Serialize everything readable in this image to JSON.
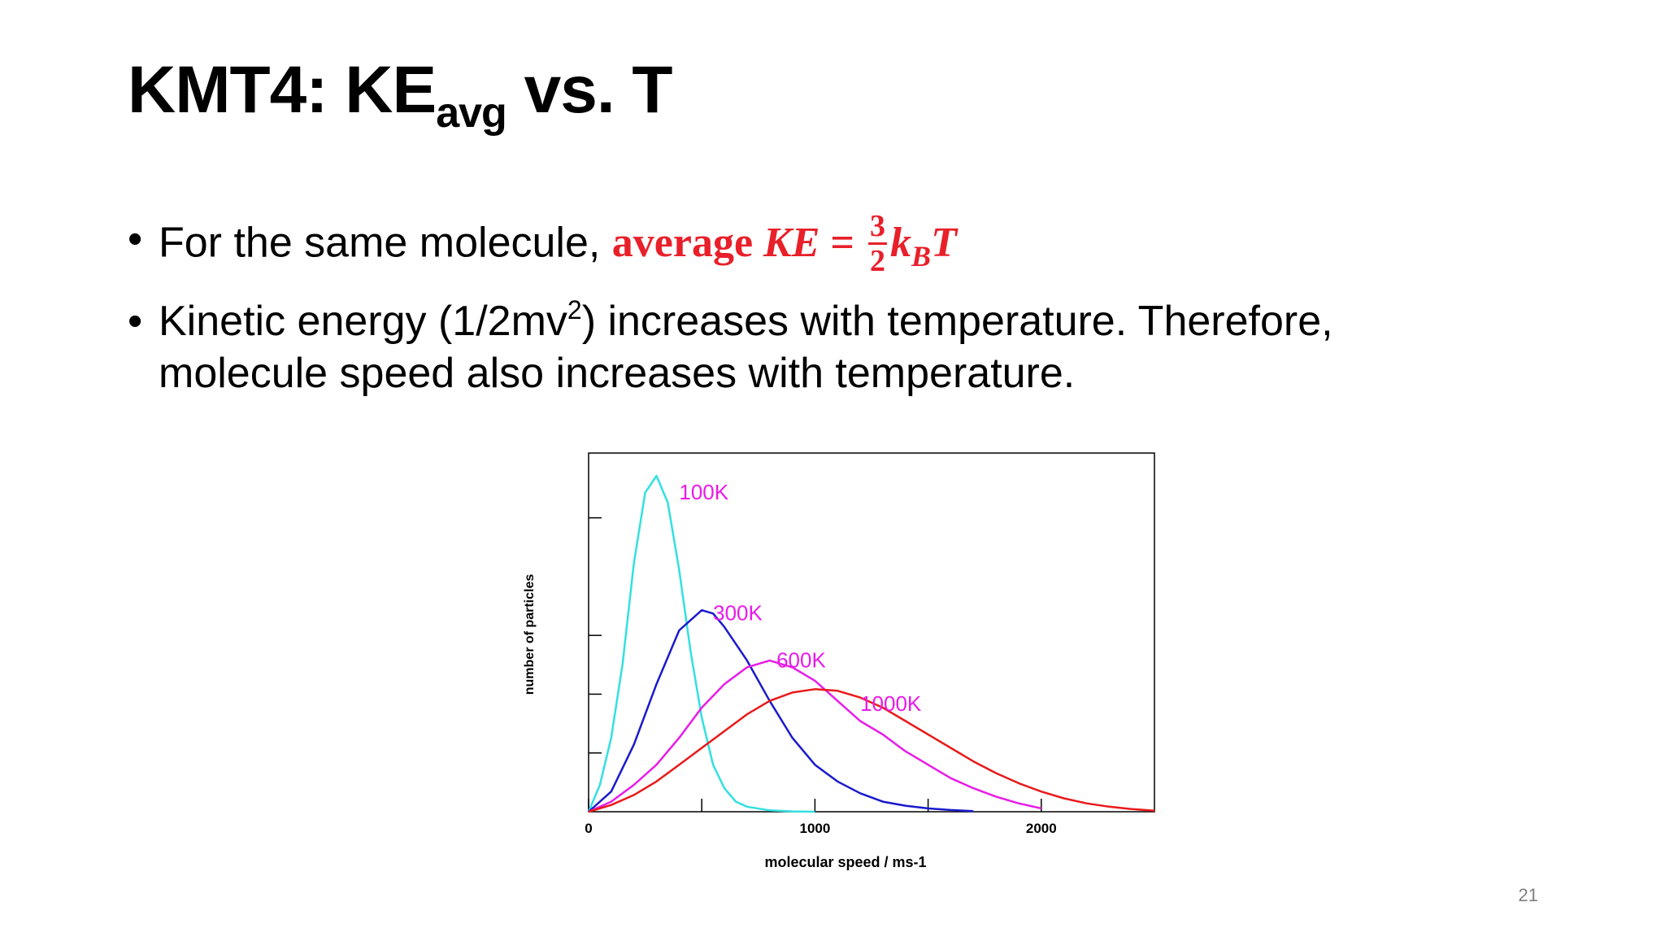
{
  "slide": {
    "title_main": "KMT4: KE",
    "title_sub": "avg",
    "title_tail": " vs. T",
    "page_number": "21"
  },
  "bullets": {
    "b1_text": "For the same molecule, ",
    "b1_red_word": "average ",
    "b1_ke": "KE",
    "b1_eq": " = ",
    "b1_frac_num": "3",
    "b1_frac_den": "2",
    "b1_k": "k",
    "b1_k_sub": "B",
    "b1_T": "T",
    "b2_line1_a": "Kinetic energy (1/2mv",
    "b2_line1_sup": "2",
    "b2_line1_b": ") increases with temperature. Therefore,",
    "b2_line2": "molecule speed also increases with temperature."
  },
  "chart_data": {
    "type": "line",
    "xlabel": "molecular speed / ms-1",
    "ylabel": "number of particles",
    "xlim": [
      0,
      2500
    ],
    "ylim": [
      0,
      1.0
    ],
    "x_ticks": [
      "0",
      "1000",
      "2000"
    ],
    "series": [
      {
        "name": "100K",
        "color": "#33e0e0",
        "x": [
          0,
          50,
          100,
          150,
          200,
          250,
          300,
          350,
          400,
          450,
          500,
          550,
          600,
          650,
          700,
          800,
          900,
          1000
        ],
        "y": [
          0,
          0.08,
          0.22,
          0.44,
          0.74,
          0.95,
          1.0,
          0.92,
          0.72,
          0.48,
          0.28,
          0.14,
          0.07,
          0.03,
          0.015,
          0.004,
          0.001,
          0
        ]
      },
      {
        "name": "300K",
        "color": "#1a1acc",
        "x": [
          0,
          100,
          200,
          300,
          400,
          500,
          550,
          600,
          700,
          800,
          900,
          1000,
          1100,
          1200,
          1300,
          1400,
          1500,
          1600,
          1700
        ],
        "y": [
          0,
          0.06,
          0.2,
          0.38,
          0.54,
          0.6,
          0.59,
          0.55,
          0.45,
          0.33,
          0.22,
          0.14,
          0.09,
          0.055,
          0.03,
          0.018,
          0.01,
          0.005,
          0.002
        ]
      },
      {
        "name": "600K",
        "color": "#e81ce8",
        "x": [
          0,
          100,
          200,
          300,
          400,
          500,
          600,
          700,
          800,
          900,
          1000,
          1100,
          1200,
          1300,
          1400,
          1500,
          1600,
          1700,
          1800,
          1900,
          2000
        ],
        "y": [
          0,
          0.03,
          0.08,
          0.14,
          0.22,
          0.31,
          0.38,
          0.43,
          0.45,
          0.43,
          0.39,
          0.33,
          0.27,
          0.23,
          0.18,
          0.14,
          0.1,
          0.07,
          0.045,
          0.025,
          0.01
        ]
      },
      {
        "name": "1000K",
        "color": "#e81a1a",
        "x": [
          0,
          100,
          200,
          300,
          400,
          500,
          600,
          700,
          800,
          900,
          1000,
          1100,
          1200,
          1300,
          1400,
          1500,
          1600,
          1700,
          1800,
          1900,
          2000,
          2100,
          2200,
          2300,
          2400,
          2500
        ],
        "y": [
          0,
          0.02,
          0.05,
          0.09,
          0.14,
          0.19,
          0.24,
          0.29,
          0.33,
          0.355,
          0.365,
          0.36,
          0.34,
          0.31,
          0.27,
          0.23,
          0.19,
          0.15,
          0.115,
          0.085,
          0.06,
          0.04,
          0.025,
          0.015,
          0.008,
          0.003
        ]
      }
    ],
    "curve_labels": [
      {
        "text": "100K",
        "x": 400,
        "y": 0.93
      },
      {
        "text": "300K",
        "x": 550,
        "y": 0.57
      },
      {
        "text": "600K",
        "x": 830,
        "y": 0.43
      },
      {
        "text": "1000K",
        "x": 1200,
        "y": 0.3
      }
    ],
    "label_color": "#e81ce8",
    "grid": false
  }
}
